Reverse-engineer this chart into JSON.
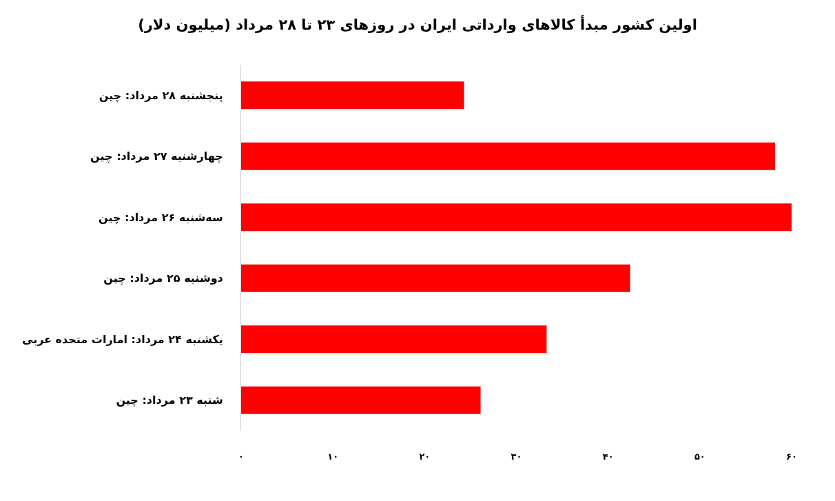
{
  "chart_data": {
    "type": "bar",
    "orientation": "horizontal",
    "title": "اولین کشور مبدأ کالاهای وارداتی ایران در روزهای ۲۳ تا ۲۸ مرداد (میلیون دلار)",
    "categories": [
      "پنجشنبه ۲۸ مرداد: چین",
      "چهارشنبه ۲۷ مرداد: چین",
      "سه‌شنبه ۲۶ مرداد: چین",
      "دوشنبه ۲۵ مرداد: چین",
      "یکشنبه ۲۴ مرداد: امارات متحده عربی",
      "شنبه ۲۳ مرداد: چین"
    ],
    "values": [
      24.3,
      58.2,
      60,
      42.4,
      33.3,
      26.1
    ],
    "color": "#ff0000",
    "xlim": [
      0,
      60
    ],
    "xticks": [
      {
        "value": 0,
        "label": "۰"
      },
      {
        "value": 10,
        "label": "۱۰"
      },
      {
        "value": 20,
        "label": "۲۰"
      },
      {
        "value": 30,
        "label": "۳۰"
      },
      {
        "value": 40,
        "label": "۴۰"
      },
      {
        "value": 50,
        "label": "۵۰"
      },
      {
        "value": 60,
        "label": "۶۰"
      }
    ]
  }
}
